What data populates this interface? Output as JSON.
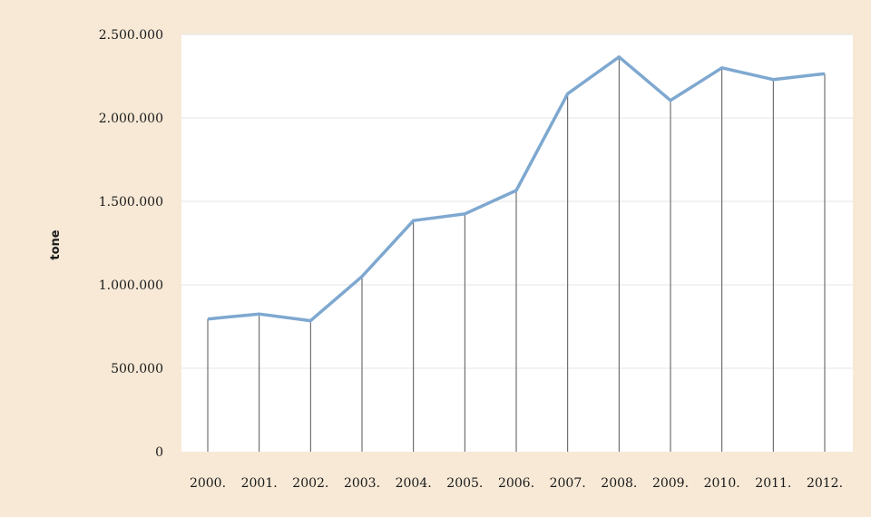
{
  "chart_data": {
    "type": "line",
    "title": "",
    "xlabel": "",
    "ylabel": "tone",
    "categories": [
      "2000.",
      "2001.",
      "2002.",
      "2003.",
      "2004.",
      "2005.",
      "2006.",
      "2007.",
      "2008.",
      "2009.",
      "2010.",
      "2011.",
      "2012."
    ],
    "series": [
      {
        "values": [
          795000,
          825000,
          785000,
          1050000,
          1385000,
          1425000,
          1565000,
          2145000,
          2365000,
          2105000,
          2300000,
          2230000,
          2265000
        ]
      }
    ],
    "ylim": [
      0,
      2500000
    ],
    "yticks": [
      0,
      500000,
      1000000,
      1500000,
      2000000,
      2500000
    ],
    "ytick_labels": [
      "0",
      "500.000",
      "1.000.000",
      "1.500.000",
      "2.000.000",
      "2.500.000"
    ],
    "grid": true,
    "drop_lines": true,
    "legend": "none",
    "colors": {
      "line": "#7ea8d0",
      "background": "#f7e9d6",
      "plot_area": "#ffffff",
      "drop_line": "#555555",
      "grid": "#e6e6e6"
    }
  }
}
